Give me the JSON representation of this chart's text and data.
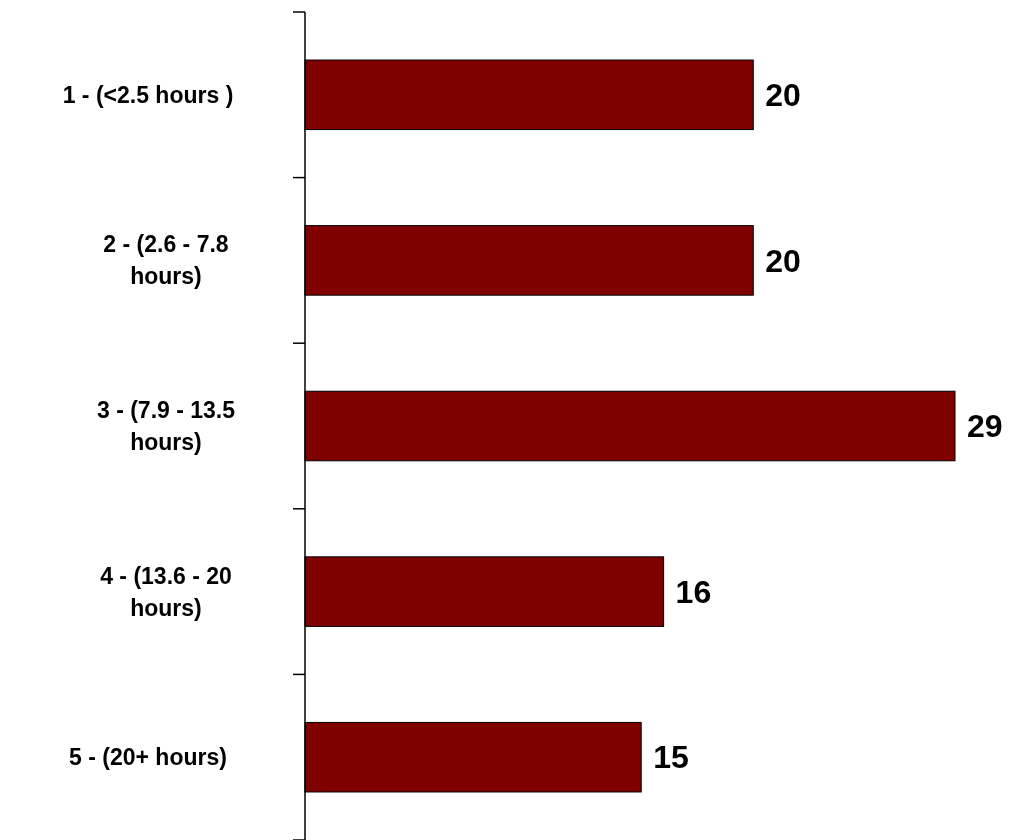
{
  "chart_data": {
    "type": "bar",
    "orientation": "horizontal",
    "categories": [
      "1 - (<2.5 hours )",
      "2 - (2.6 - 7.8 hours)",
      "3 - (7.9 - 13.5 hours)",
      "4 - (13.6 - 20 hours)",
      "5 - (20+ hours)"
    ],
    "values": [
      20,
      20,
      29,
      16,
      15
    ],
    "color": "#800000",
    "data_labels": true
  }
}
